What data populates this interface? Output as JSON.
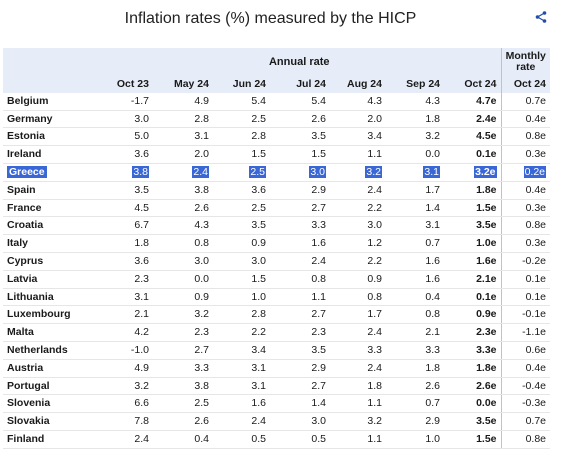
{
  "title": "Inflation rates (%) measured by the HICP",
  "share_icon": "share-icon",
  "header": {
    "annual_rate": "Annual rate",
    "monthly_rate_line1": "Monthly",
    "monthly_rate_line2": "rate",
    "columns": [
      "Oct 23",
      "May 24",
      "Jun 24",
      "Jul 24",
      "Aug 24",
      "Sep 24",
      "Oct 24",
      "Oct 24"
    ]
  },
  "rows": [
    {
      "country": "Belgium",
      "values": [
        "-1.7",
        "4.9",
        "5.4",
        "5.4",
        "4.3",
        "4.3",
        "4.7e",
        "0.7e"
      ]
    },
    {
      "country": "Germany",
      "values": [
        "3.0",
        "2.8",
        "2.5",
        "2.6",
        "2.0",
        "1.8",
        "2.4e",
        "0.4e"
      ]
    },
    {
      "country": "Estonia",
      "values": [
        "5.0",
        "3.1",
        "2.8",
        "3.5",
        "3.4",
        "3.2",
        "4.5e",
        "0.8e"
      ]
    },
    {
      "country": "Ireland",
      "values": [
        "3.6",
        "2.0",
        "1.5",
        "1.5",
        "1.1",
        "0.0",
        "0.1e",
        "0.3e"
      ]
    },
    {
      "country": "Greece",
      "values": [
        "3.8",
        "2.4",
        "2.5",
        "3.0",
        "3.2",
        "3.1",
        "3.2e",
        "0.2e"
      ]
    },
    {
      "country": "Spain",
      "values": [
        "3.5",
        "3.8",
        "3.6",
        "2.9",
        "2.4",
        "1.7",
        "1.8e",
        "0.4e"
      ]
    },
    {
      "country": "France",
      "values": [
        "4.5",
        "2.6",
        "2.5",
        "2.7",
        "2.2",
        "1.4",
        "1.5e",
        "0.3e"
      ]
    },
    {
      "country": "Croatia",
      "values": [
        "6.7",
        "4.3",
        "3.5",
        "3.3",
        "3.0",
        "3.1",
        "3.5e",
        "0.8e"
      ]
    },
    {
      "country": "Italy",
      "values": [
        "1.8",
        "0.8",
        "0.9",
        "1.6",
        "1.2",
        "0.7",
        "1.0e",
        "0.3e"
      ]
    },
    {
      "country": "Cyprus",
      "values": [
        "3.6",
        "3.0",
        "3.0",
        "2.4",
        "2.2",
        "1.6",
        "1.6e",
        "-0.2e"
      ]
    },
    {
      "country": "Latvia",
      "values": [
        "2.3",
        "0.0",
        "1.5",
        "0.8",
        "0.9",
        "1.6",
        "2.1e",
        "0.1e"
      ]
    },
    {
      "country": "Lithuania",
      "values": [
        "3.1",
        "0.9",
        "1.0",
        "1.1",
        "0.8",
        "0.4",
        "0.1e",
        "0.1e"
      ]
    },
    {
      "country": "Luxembourg",
      "values": [
        "2.1",
        "3.2",
        "2.8",
        "2.7",
        "1.7",
        "0.8",
        "0.9e",
        "-0.1e"
      ]
    },
    {
      "country": "Malta",
      "values": [
        "4.2",
        "2.3",
        "2.2",
        "2.3",
        "2.4",
        "2.1",
        "2.3e",
        "-1.1e"
      ]
    },
    {
      "country": "Netherlands",
      "values": [
        "-1.0",
        "2.7",
        "3.4",
        "3.5",
        "3.3",
        "3.3",
        "3.3e",
        "0.6e"
      ]
    },
    {
      "country": "Austria",
      "values": [
        "4.9",
        "3.3",
        "3.1",
        "2.9",
        "2.4",
        "1.8",
        "1.8e",
        "0.4e"
      ]
    },
    {
      "country": "Portugal",
      "values": [
        "3.2",
        "3.8",
        "3.1",
        "2.7",
        "1.8",
        "2.6",
        "2.6e",
        "-0.4e"
      ]
    },
    {
      "country": "Slovenia",
      "values": [
        "6.6",
        "2.5",
        "1.6",
        "1.4",
        "1.1",
        "0.7",
        "0.0e",
        "-0.3e"
      ]
    },
    {
      "country": "Slovakia",
      "values": [
        "7.8",
        "2.6",
        "2.4",
        "3.0",
        "3.2",
        "2.9",
        "3.5e",
        "0.7e"
      ]
    },
    {
      "country": "Finland",
      "values": [
        "2.4",
        "0.4",
        "0.5",
        "0.5",
        "1.1",
        "1.0",
        "1.5e",
        "0.8e"
      ]
    }
  ],
  "highlighted_country": "Greece",
  "colors": {
    "highlight": "#3967d6",
    "header_bg": "#e7edf8"
  }
}
